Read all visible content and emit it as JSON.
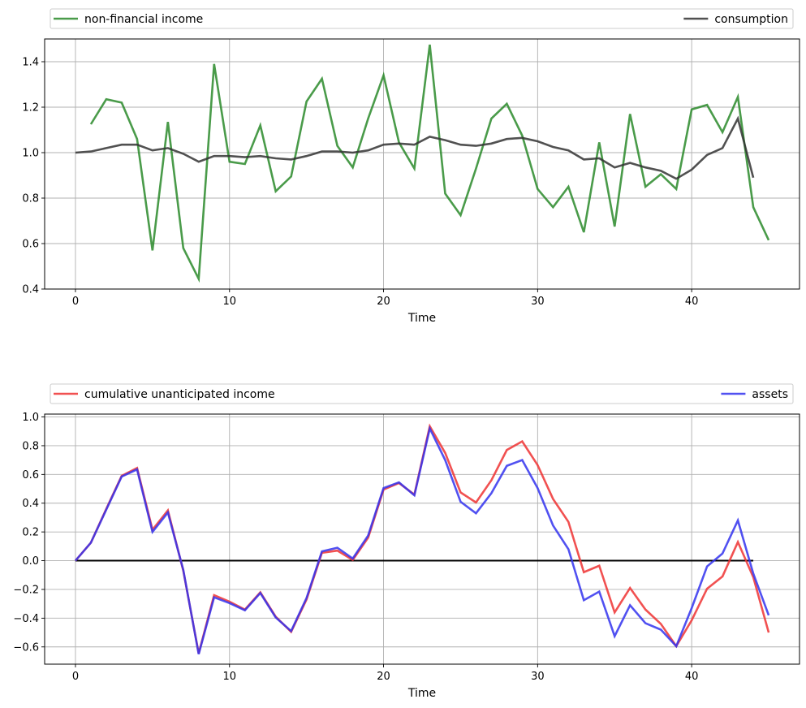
{
  "chart_data": [
    {
      "type": "line",
      "title": "",
      "xlabel": "Time",
      "ylabel": "",
      "xlim": [
        -2,
        47
      ],
      "ylim": [
        0.4,
        1.5
      ],
      "grid": true,
      "legend": "top, above plot",
      "x_ticks": [
        0,
        10,
        20,
        30,
        40
      ],
      "y_ticks": [
        0.4,
        0.6,
        0.8,
        1.0,
        1.2,
        1.4
      ],
      "x_tick_labels": [
        "0",
        "10",
        "20",
        "30",
        "40"
      ],
      "y_tick_labels": [
        "0.4",
        "0.6",
        "0.8",
        "1.0",
        "1.2",
        "1.4"
      ],
      "series": [
        {
          "name": "non-financial income",
          "color": "#2a8a2a",
          "x_start": 1,
          "values": [
            1.125,
            1.235,
            1.22,
            1.06,
            0.57,
            1.135,
            0.58,
            0.445,
            1.39,
            0.96,
            0.95,
            1.12,
            0.83,
            0.895,
            1.225,
            1.325,
            1.03,
            0.935,
            1.15,
            1.34,
            1.045,
            0.93,
            1.475,
            0.82,
            0.725,
            0.93,
            1.15,
            1.215,
            1.075,
            0.84,
            0.76,
            0.85,
            0.65,
            1.045,
            0.675,
            1.17,
            0.85,
            0.905,
            0.84,
            1.19,
            1.21,
            1.09,
            1.245,
            0.76,
            0.615
          ]
        },
        {
          "name": "consumption",
          "color": "#333333",
          "x_start": 0,
          "values": [
            1.0,
            1.005,
            1.02,
            1.035,
            1.035,
            1.01,
            1.02,
            0.995,
            0.96,
            0.985,
            0.985,
            0.98,
            0.985,
            0.975,
            0.97,
            0.985,
            1.005,
            1.005,
            1.0,
            1.01,
            1.035,
            1.04,
            1.035,
            1.07,
            1.055,
            1.035,
            1.03,
            1.04,
            1.06,
            1.065,
            1.05,
            1.025,
            1.01,
            0.97,
            0.975,
            0.935,
            0.955,
            0.935,
            0.92,
            0.885,
            0.925,
            0.99,
            1.02,
            1.15,
            0.89
          ]
        }
      ]
    },
    {
      "type": "line",
      "title": "",
      "xlabel": "Time",
      "ylabel": "",
      "xlim": [
        -2,
        47
      ],
      "ylim": [
        -0.72,
        1.02
      ],
      "grid": true,
      "legend": "top, above plot",
      "x_ticks": [
        0,
        10,
        20,
        30,
        40
      ],
      "y_ticks": [
        -0.6,
        -0.4,
        -0.2,
        0.0,
        0.2,
        0.4,
        0.6,
        0.8,
        1.0
      ],
      "x_tick_labels": [
        "0",
        "10",
        "20",
        "30",
        "40"
      ],
      "y_tick_labels": [
        "−0.6",
        "−0.4",
        "−0.2",
        "0.0",
        "0.2",
        "0.4",
        "0.6",
        "0.8",
        "1.0"
      ],
      "zero_line": {
        "color": "#000000",
        "x": [
          0,
          44
        ],
        "y": 0
      },
      "series": [
        {
          "name": "cumulative unanticipated income",
          "color": "#ee3333",
          "x_start": 0,
          "values": [
            0.0,
            0.125,
            0.36,
            0.59,
            0.645,
            0.215,
            0.35,
            -0.07,
            -0.645,
            -0.24,
            -0.285,
            -0.34,
            -0.22,
            -0.39,
            -0.495,
            -0.27,
            0.055,
            0.07,
            0.005,
            0.16,
            0.495,
            0.54,
            0.46,
            0.935,
            0.75,
            0.475,
            0.405,
            0.56,
            0.77,
            0.83,
            0.665,
            0.43,
            0.27,
            -0.08,
            -0.035,
            -0.36,
            -0.19,
            -0.34,
            -0.44,
            -0.595,
            -0.415,
            -0.195,
            -0.11,
            0.13,
            -0.115,
            -0.5
          ]
        },
        {
          "name": "assets",
          "color": "#3333ee",
          "x_start": 0,
          "values": [
            0.0,
            0.125,
            0.355,
            0.585,
            0.635,
            0.2,
            0.335,
            -0.065,
            -0.65,
            -0.255,
            -0.295,
            -0.345,
            -0.225,
            -0.395,
            -0.49,
            -0.26,
            0.065,
            0.09,
            0.015,
            0.175,
            0.505,
            0.545,
            0.455,
            0.92,
            0.7,
            0.41,
            0.33,
            0.47,
            0.66,
            0.7,
            0.505,
            0.245,
            0.08,
            -0.275,
            -0.215,
            -0.525,
            -0.31,
            -0.435,
            -0.48,
            -0.595,
            -0.33,
            -0.04,
            0.05,
            0.28,
            -0.09,
            -0.38
          ]
        }
      ]
    }
  ]
}
